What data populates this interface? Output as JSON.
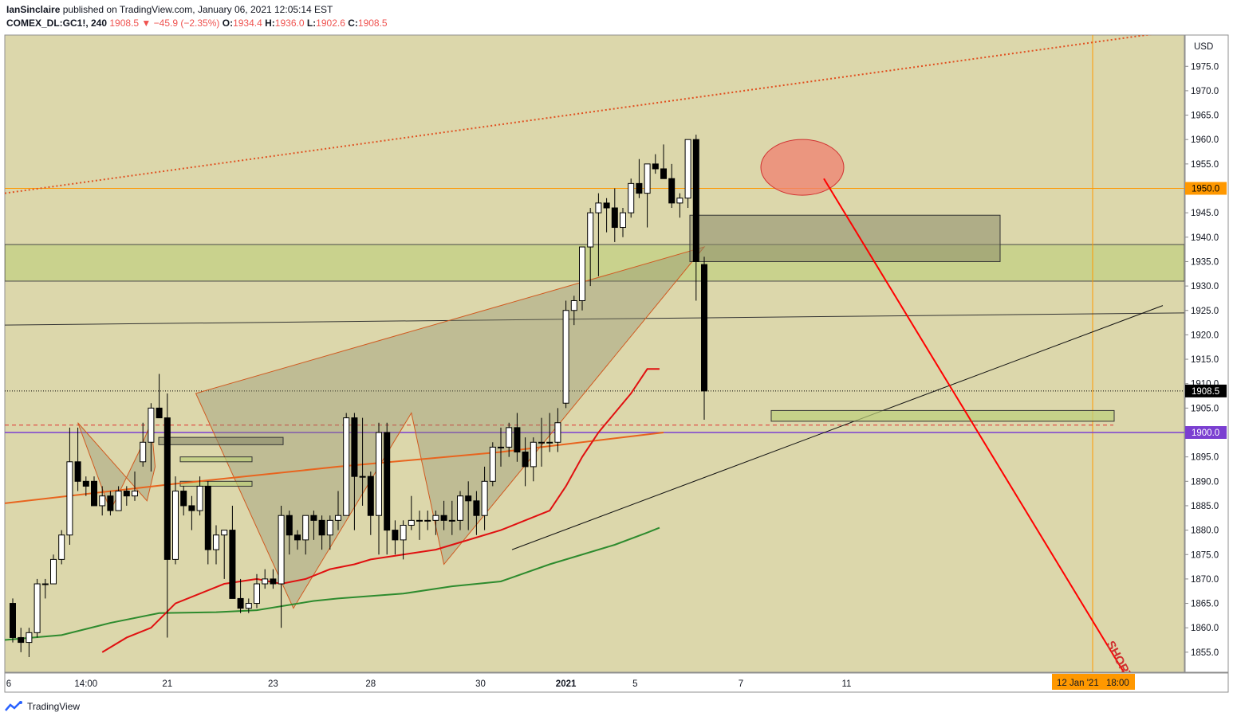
{
  "header": {
    "author": "IanSinclaire",
    "published_text": "published on TradingView.com, January 06, 2021 12:05:14 EST",
    "symbol": "COMEX_DL:GC1!, 240",
    "last": "1908.5",
    "change": "−45.9 (−2.35%)",
    "o_label": "O:",
    "o": "1934.4",
    "h_label": "H:",
    "h": "1936.0",
    "l_label": "L:",
    "l": "1902.6",
    "c_label": "C:",
    "c": "1908.5"
  },
  "footer": {
    "brand": "TradingView"
  },
  "colors": {
    "background": "#dcd7ab",
    "up": "#ffffff",
    "down": "#000000",
    "ma_red": "#e01010",
    "ma_orange": "#e8641e",
    "ma_green": "#2e8b2e",
    "price_tag": "#000000",
    "level_1950": "#ff9800",
    "level_1900": "#7b3fd1"
  },
  "chart_data": {
    "type": "candlestick",
    "currency": "USD",
    "ylim": [
      1850,
      1990
    ],
    "y_ticks": [
      "1855.0",
      "1860.0",
      "1865.0",
      "1870.0",
      "1875.0",
      "1880.0",
      "1885.0",
      "1890.0",
      "1895.0",
      "1900.0",
      "1905.0",
      "1910.0",
      "1915.0",
      "1920.0",
      "1925.0",
      "1930.0",
      "1935.0",
      "1940.0",
      "1945.0",
      "1950.0",
      "1955.0",
      "1960.0",
      "1965.0",
      "1970.0",
      "1975.0"
    ],
    "x_ticks": [
      {
        "label": "6",
        "index": -0.5
      },
      {
        "label": "14:00",
        "index": 9
      },
      {
        "label": "21",
        "index": 19
      },
      {
        "label": "23",
        "index": 32
      },
      {
        "label": "28",
        "index": 44
      },
      {
        "label": "30",
        "index": 57.5
      },
      {
        "label": "2021",
        "index": 68
      },
      {
        "label": "5",
        "index": 76.5
      },
      {
        "label": "7",
        "index": 89.5
      },
      {
        "label": "11",
        "index": 102.5
      }
    ],
    "price_labels": [
      {
        "text": "1950.0",
        "value": 1950.0,
        "color": "#ff9800"
      },
      {
        "text": "1908.5",
        "value": 1908.5,
        "color": "#000000"
      },
      {
        "text": "1900.0",
        "value": 1900.0,
        "color": "#7b3fd1"
      }
    ],
    "time_label": "12 Jan '21",
    "time_label_2": "18:00",
    "annotation": "SHORT",
    "candles": [
      [
        1865,
        1866,
        1857,
        1858
      ],
      [
        1858,
        1860,
        1855,
        1857
      ],
      [
        1857,
        1860,
        1854,
        1859
      ],
      [
        1859,
        1870,
        1858,
        1869
      ],
      [
        1869,
        1870,
        1866,
        1869
      ],
      [
        1869,
        1875,
        1869,
        1874
      ],
      [
        1874,
        1880,
        1873,
        1879
      ],
      [
        1879,
        1901,
        1877,
        1894
      ],
      [
        1894,
        1901,
        1888,
        1890
      ],
      [
        1890,
        1891,
        1887,
        1889
      ],
      [
        1890,
        1891,
        1886,
        1885
      ],
      [
        1885,
        1889,
        1883,
        1887
      ],
      [
        1887,
        1888,
        1883,
        1884
      ],
      [
        1884,
        1889,
        1884,
        1888
      ],
      [
        1888,
        1889,
        1885,
        1887
      ],
      [
        1887,
        1892,
        1886,
        1888
      ],
      [
        1894,
        1902,
        1893,
        1898
      ],
      [
        1898,
        1906,
        1892,
        1905
      ],
      [
        1905,
        1912,
        1903,
        1903
      ],
      [
        1903,
        1908,
        1858,
        1874
      ],
      [
        1874,
        1891,
        1873,
        1888
      ],
      [
        1888,
        1889,
        1883,
        1885
      ],
      [
        1885,
        1887,
        1880,
        1884
      ],
      [
        1884,
        1891,
        1883,
        1889
      ],
      [
        1889,
        1890,
        1873,
        1876
      ],
      [
        1876,
        1881,
        1873,
        1879
      ],
      [
        1879,
        1880,
        1870,
        1880
      ],
      [
        1880,
        1885,
        1866,
        1866
      ],
      [
        1866,
        1870,
        1863,
        1864
      ],
      [
        1864,
        1866,
        1863,
        1865
      ],
      [
        1865,
        1871,
        1864,
        1869
      ],
      [
        1869,
        1872,
        1868,
        1870
      ],
      [
        1870,
        1872,
        1868,
        1869
      ],
      [
        1869,
        1885,
        1860,
        1883
      ],
      [
        1883,
        1884,
        1875,
        1879
      ],
      [
        1879,
        1880,
        1876,
        1878
      ],
      [
        1878,
        1883,
        1875,
        1883
      ],
      [
        1883,
        1884,
        1878,
        1882
      ],
      [
        1882,
        1883,
        1876,
        1879
      ],
      [
        1879,
        1883,
        1876,
        1882
      ],
      [
        1882,
        1888,
        1880,
        1883
      ],
      [
        1883,
        1904,
        1883,
        1903
      ],
      [
        1903,
        1904,
        1880,
        1891
      ],
      [
        1891,
        1903,
        1885,
        1891
      ],
      [
        1891,
        1892,
        1879,
        1883
      ],
      [
        1883,
        1902,
        1875,
        1900
      ],
      [
        1900,
        1902,
        1875,
        1880
      ],
      [
        1880,
        1882,
        1875,
        1878
      ],
      [
        1878,
        1882,
        1874,
        1881
      ],
      [
        1881,
        1887,
        1880,
        1882
      ],
      [
        1882,
        1884,
        1878,
        1882
      ],
      [
        1882,
        1884,
        1880,
        1882
      ],
      [
        1882,
        1884,
        1879,
        1883
      ],
      [
        1883,
        1886,
        1880,
        1882
      ],
      [
        1882,
        1886,
        1879,
        1882
      ],
      [
        1882,
        1888,
        1880,
        1887
      ],
      [
        1887,
        1890,
        1880,
        1886
      ],
      [
        1886,
        1888,
        1879,
        1883
      ],
      [
        1883,
        1893,
        1880,
        1890
      ],
      [
        1890,
        1898,
        1889,
        1897
      ],
      [
        1897,
        1901,
        1893,
        1897
      ],
      [
        1897,
        1902,
        1895,
        1901
      ],
      [
        1901,
        1904,
        1894,
        1896
      ],
      [
        1896,
        1899,
        1889,
        1893
      ],
      [
        1893,
        1899,
        1890,
        1898
      ],
      [
        1898,
        1903,
        1893,
        1898
      ],
      [
        1898,
        1904,
        1896,
        1898
      ],
      [
        1898,
        1905,
        1896,
        1902
      ],
      [
        1906,
        1927,
        1905,
        1925
      ],
      [
        1925,
        1928,
        1922,
        1927
      ],
      [
        1927,
        1938,
        1925,
        1938
      ],
      [
        1938,
        1946,
        1930,
        1945
      ],
      [
        1945,
        1949,
        1932,
        1947
      ],
      [
        1947,
        1948,
        1941,
        1946
      ],
      [
        1946,
        1950,
        1939,
        1942
      ],
      [
        1942,
        1946,
        1940,
        1945
      ],
      [
        1945,
        1952,
        1944,
        1951
      ],
      [
        1951,
        1956,
        1948,
        1949
      ],
      [
        1949,
        1955,
        1942,
        1955
      ],
      [
        1955,
        1957,
        1953,
        1954
      ],
      [
        1954,
        1959,
        1952,
        1952
      ],
      [
        1952,
        1955,
        1946,
        1947
      ],
      [
        1947,
        1949,
        1944,
        1948
      ],
      [
        1948,
        1960,
        1946,
        1960
      ],
      [
        1960,
        1961,
        1927,
        1935
      ],
      [
        1934.4,
        1936,
        1902.6,
        1908.5
      ]
    ],
    "ma_red": [
      [
        11,
        1855
      ],
      [
        14,
        1858
      ],
      [
        17,
        1860
      ],
      [
        20,
        1865
      ],
      [
        23,
        1867
      ],
      [
        26,
        1869
      ],
      [
        30,
        1870
      ],
      [
        33,
        1869
      ],
      [
        36,
        1870
      ],
      [
        39,
        1872
      ],
      [
        42,
        1873
      ],
      [
        44,
        1874
      ],
      [
        48,
        1875
      ],
      [
        52,
        1876
      ],
      [
        56,
        1878
      ],
      [
        60,
        1880
      ],
      [
        63,
        1882
      ],
      [
        66,
        1884
      ],
      [
        68,
        1889
      ],
      [
        70,
        1895
      ],
      [
        72,
        1900
      ],
      [
        74,
        1904
      ],
      [
        76,
        1908
      ],
      [
        78,
        1913
      ],
      [
        79.5,
        1913
      ]
    ],
    "ma_orange": [
      [
        -1,
        1885.5
      ],
      [
        20,
        1889.5
      ],
      [
        40,
        1893
      ],
      [
        60,
        1896
      ],
      [
        80,
        1900
      ]
    ],
    "ma_green": [
      [
        -1,
        1857.5
      ],
      [
        6,
        1858.5
      ],
      [
        12,
        1861
      ],
      [
        18,
        1863
      ],
      [
        25,
        1863.2
      ],
      [
        30,
        1863.6
      ],
      [
        37,
        1865.5
      ],
      [
        40,
        1866
      ],
      [
        48,
        1867
      ],
      [
        54,
        1868.5
      ],
      [
        60,
        1869.5
      ],
      [
        66,
        1873
      ],
      [
        70,
        1875
      ],
      [
        74,
        1877
      ],
      [
        78,
        1879.5
      ],
      [
        79.5,
        1880.5
      ]
    ]
  }
}
